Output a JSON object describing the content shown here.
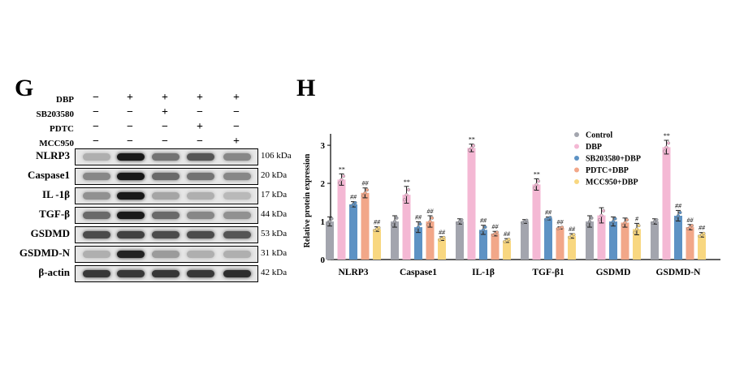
{
  "panels": {
    "left_letter": "G",
    "right_letter": "H"
  },
  "treatments": [
    {
      "label": "DBP",
      "signs": [
        "−",
        "+",
        "+",
        "+",
        "+"
      ]
    },
    {
      "label": "SB203580",
      "signs": [
        "−",
        "−",
        "+",
        "−",
        "−"
      ]
    },
    {
      "label": "PDTC",
      "signs": [
        "−",
        "−",
        "−",
        "+",
        "−"
      ]
    },
    {
      "label": "MCC950",
      "signs": [
        "−",
        "−",
        "−",
        "−",
        "+"
      ]
    }
  ],
  "blots": [
    {
      "label": "NLRP3",
      "kda": "106 kDa",
      "intensity": [
        0.25,
        1.0,
        0.55,
        0.7,
        0.45
      ]
    },
    {
      "label": "Caspase1",
      "kda": "20 kDa",
      "intensity": [
        0.45,
        1.0,
        0.6,
        0.55,
        0.45
      ]
    },
    {
      "label": "IL -1β",
      "kda": "17 kDa",
      "intensity": [
        0.4,
        1.0,
        0.3,
        0.25,
        0.2
      ]
    },
    {
      "label": "TGF-β",
      "kda": "44 kDa",
      "intensity": [
        0.6,
        1.0,
        0.6,
        0.45,
        0.4
      ]
    },
    {
      "label": "GSDMD",
      "kda": "53 kDa",
      "intensity": [
        0.75,
        0.8,
        0.75,
        0.75,
        0.7
      ]
    },
    {
      "label": "GSDMD-N",
      "kda": "31 kDa",
      "intensity": [
        0.25,
        0.95,
        0.35,
        0.25,
        0.25
      ]
    },
    {
      "label": "β-actin",
      "kda": "42 kDa",
      "intensity": [
        0.85,
        0.85,
        0.85,
        0.85,
        0.9
      ]
    }
  ],
  "chart_data": {
    "type": "bar",
    "title": "",
    "xlabel": "",
    "ylabel": "Relative protein expression",
    "ylim": [
      0,
      3.3
    ],
    "yticks": [
      0,
      1,
      2,
      3
    ],
    "categories": [
      "NLRP3",
      "Caspase1",
      "IL-1β",
      "TGF-β1",
      "GSDMD",
      "GSDMD-N"
    ],
    "legend_position": "top-right",
    "series": [
      {
        "name": "Control",
        "color": "#a3a5ae",
        "values": [
          1.0,
          1.0,
          1.0,
          1.0,
          1.0,
          1.0
        ],
        "errors": [
          0.12,
          0.15,
          0.07,
          0.05,
          0.15,
          0.07
        ],
        "marks": [
          "",
          "",
          "",
          "",
          "",
          ""
        ]
      },
      {
        "name": "DBP",
        "color": "#f4b8d4",
        "values": [
          2.1,
          1.7,
          2.93,
          1.97,
          1.16,
          2.95
        ],
        "errors": [
          0.15,
          0.22,
          0.1,
          0.15,
          0.2,
          0.18
        ],
        "marks": [
          "**",
          "**",
          "**",
          "**",
          "",
          "**"
        ]
      },
      {
        "name": "SB203580+DBP",
        "color": "#5d92c4",
        "values": [
          1.45,
          0.85,
          0.78,
          1.08,
          1.0,
          1.15
        ],
        "errors": [
          0.07,
          0.14,
          0.12,
          0.04,
          0.12,
          0.14
        ],
        "marks": [
          "##",
          "##",
          "##",
          "##",
          "",
          "##"
        ]
      },
      {
        "name": "PDTC+DBP",
        "color": "#f2a789",
        "values": [
          1.75,
          1.0,
          0.68,
          0.83,
          0.97,
          0.85
        ],
        "errors": [
          0.13,
          0.15,
          0.06,
          0.03,
          0.12,
          0.07
        ],
        "marks": [
          "##",
          "##",
          "##",
          "##",
          "",
          "##"
        ]
      },
      {
        "name": "MCC950+DBP",
        "color": "#f8d780",
        "values": [
          0.8,
          0.55,
          0.5,
          0.62,
          0.8,
          0.65
        ],
        "errors": [
          0.06,
          0.05,
          0.05,
          0.06,
          0.15,
          0.06
        ],
        "marks": [
          "##",
          "##",
          "##",
          "##",
          "#",
          "##"
        ]
      }
    ]
  }
}
